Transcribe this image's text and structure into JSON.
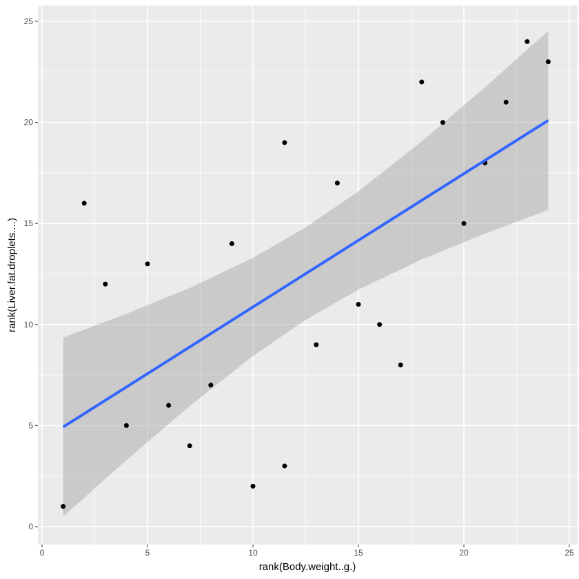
{
  "chart_data": {
    "type": "scatter",
    "title": "",
    "xlabel": "rank(Body.weight..g.)",
    "ylabel": "rank(Liver.fat.droplets....)",
    "xlim": [
      0,
      25
    ],
    "ylim": [
      0,
      25
    ],
    "xticks": [
      0,
      5,
      10,
      15,
      20,
      25
    ],
    "yticks": [
      0,
      5,
      10,
      15,
      20,
      25
    ],
    "grid": true,
    "points": [
      [
        1,
        1
      ],
      [
        2,
        16
      ],
      [
        3,
        12
      ],
      [
        4,
        5
      ],
      [
        5,
        13
      ],
      [
        6,
        6
      ],
      [
        7,
        4
      ],
      [
        8,
        7
      ],
      [
        9,
        14
      ],
      [
        10,
        2
      ],
      [
        11.5,
        19
      ],
      [
        11.5,
        3
      ],
      [
        13,
        9
      ],
      [
        14,
        17
      ],
      [
        15,
        11
      ],
      [
        16,
        10
      ],
      [
        17,
        8
      ],
      [
        18,
        22
      ],
      [
        19,
        20
      ],
      [
        20,
        15
      ],
      [
        21,
        18
      ],
      [
        22,
        21
      ],
      [
        23,
        24
      ],
      [
        24,
        23
      ]
    ],
    "fit_line": {
      "x": [
        1,
        24
      ],
      "y": [
        4.93,
        20.1
      ],
      "color": "#3366FF"
    },
    "ci_band": {
      "x": [
        1,
        4,
        7,
        10,
        12.5,
        15,
        18,
        21,
        24
      ],
      "lower": [
        0.5,
        3.29,
        5.97,
        8.44,
        10.23,
        11.73,
        13.22,
        14.5,
        15.67
      ],
      "upper": [
        9.36,
        10.53,
        11.81,
        13.3,
        14.81,
        16.59,
        19.06,
        21.74,
        24.53
      ]
    }
  }
}
